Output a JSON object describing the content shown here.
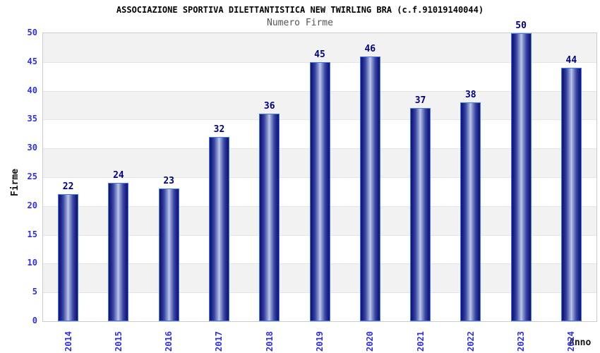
{
  "header": {
    "title": "ASSOCIAZIONE SPORTIVA DILETTANTISTICA NEW TWIRLING BRA (c.f.91019140044)",
    "subtitle": "Numero Firme"
  },
  "chart_data": {
    "type": "bar",
    "title": "Numero Firme",
    "categories": [
      "2014",
      "2015",
      "2016",
      "2017",
      "2018",
      "2019",
      "2020",
      "2021",
      "2022",
      "2023",
      "2024"
    ],
    "values": [
      22,
      24,
      23,
      32,
      36,
      45,
      46,
      37,
      38,
      50,
      44
    ],
    "xlabel": "Anno",
    "ylabel": "Firme",
    "ylim": [
      0,
      50
    ],
    "yticks": [
      0,
      5,
      10,
      15,
      20,
      25,
      30,
      35,
      40,
      45,
      50
    ],
    "grid": "horizontal-bands-alternating",
    "legend": "none",
    "value_labels": "above-bars"
  },
  "colors": {
    "bar_edge_dark": "#15156b",
    "bar_center_light": "#c2c8ea",
    "bar_border": "#3f7bee",
    "tick_label": "#3030d8",
    "value_label": "#00007d",
    "band_gray": "#f2f2f2",
    "band_white": "#ffffff",
    "gridline": "#e4e4e4",
    "plot_border": "#cccccc",
    "title": "#000000",
    "subtitle": "#555555",
    "axis_title": "#111111"
  }
}
